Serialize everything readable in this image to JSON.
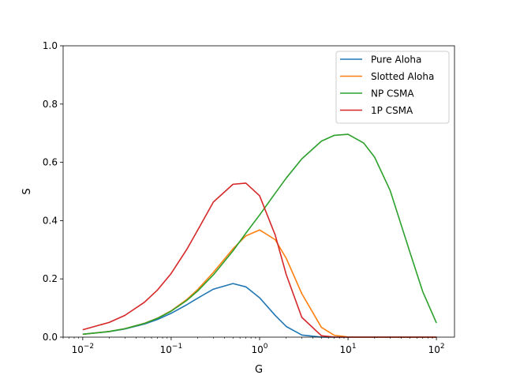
{
  "chart_data": {
    "type": "line",
    "title": "",
    "xlabel": "G",
    "ylabel": "S",
    "xscale": "log",
    "xlim": [
      0.006,
      160
    ],
    "ylim": [
      0,
      1.0
    ],
    "grid": false,
    "legend_position": "top-right",
    "x_ticks": [
      {
        "value": 0.01,
        "base": "10",
        "exp": "−2"
      },
      {
        "value": 0.1,
        "base": "10",
        "exp": "−1"
      },
      {
        "value": 1,
        "base": "10",
        "exp": "0"
      },
      {
        "value": 10,
        "base": "10",
        "exp": "1"
      },
      {
        "value": 100,
        "base": "10",
        "exp": "2"
      }
    ],
    "y_ticks": [
      {
        "value": 0.0,
        "label": "0.0"
      },
      {
        "value": 0.2,
        "label": "0.2"
      },
      {
        "value": 0.4,
        "label": "0.4"
      },
      {
        "value": 0.6,
        "label": "0.6"
      },
      {
        "value": 0.8,
        "label": "0.8"
      },
      {
        "value": 1.0,
        "label": "1.0"
      }
    ],
    "x": [
      0.01,
      0.02,
      0.03,
      0.05,
      0.07,
      0.1,
      0.15,
      0.2,
      0.3,
      0.5,
      0.7,
      1,
      1.5,
      2,
      3,
      5,
      7,
      10,
      15,
      20,
      30,
      50,
      70,
      100
    ],
    "series": [
      {
        "name": "Pure Aloha",
        "color": "#1f77b4",
        "values": [
          0.0098,
          0.0192,
          0.0283,
          0.0452,
          0.0607,
          0.0819,
          0.1111,
          0.1341,
          0.1647,
          0.1839,
          0.1726,
          0.1353,
          0.0747,
          0.0366,
          0.0074,
          0.0002,
          0,
          0,
          0,
          0,
          0,
          0,
          0,
          0
        ]
      },
      {
        "name": "Slotted Aloha",
        "color": "#ff7f0e",
        "values": [
          0.0099,
          0.0196,
          0.0291,
          0.0476,
          0.0653,
          0.0905,
          0.1291,
          0.1637,
          0.2222,
          0.3033,
          0.3476,
          0.3679,
          0.3347,
          0.2707,
          0.1494,
          0.0337,
          0.0064,
          0.0005,
          0,
          0,
          0,
          0,
          0,
          0
        ]
      },
      {
        "name": "NP CSMA",
        "color": "#2ca02c",
        "values": [
          0.0099,
          0.0195,
          0.029,
          0.0472,
          0.0646,
          0.0891,
          0.126,
          0.1588,
          0.2138,
          0.296,
          0.357,
          0.4192,
          0.4938,
          0.5459,
          0.6117,
          0.6728,
          0.6927,
          0.6964,
          0.6666,
          0.6176,
          0.5028,
          0.2924,
          0.1561,
          0.0487
        ]
      },
      {
        "name": "1P CSMA",
        "color": "#d62728",
        "values": [
          0.0254,
          0.0507,
          0.0749,
          0.1202,
          0.1618,
          0.2185,
          0.3009,
          0.3679,
          0.4637,
          0.5247,
          0.5287,
          0.4853,
          0.3508,
          0.2151,
          0.0681,
          0.0049,
          0.0003,
          0,
          0,
          0,
          0,
          0,
          0,
          0
        ]
      }
    ]
  }
}
